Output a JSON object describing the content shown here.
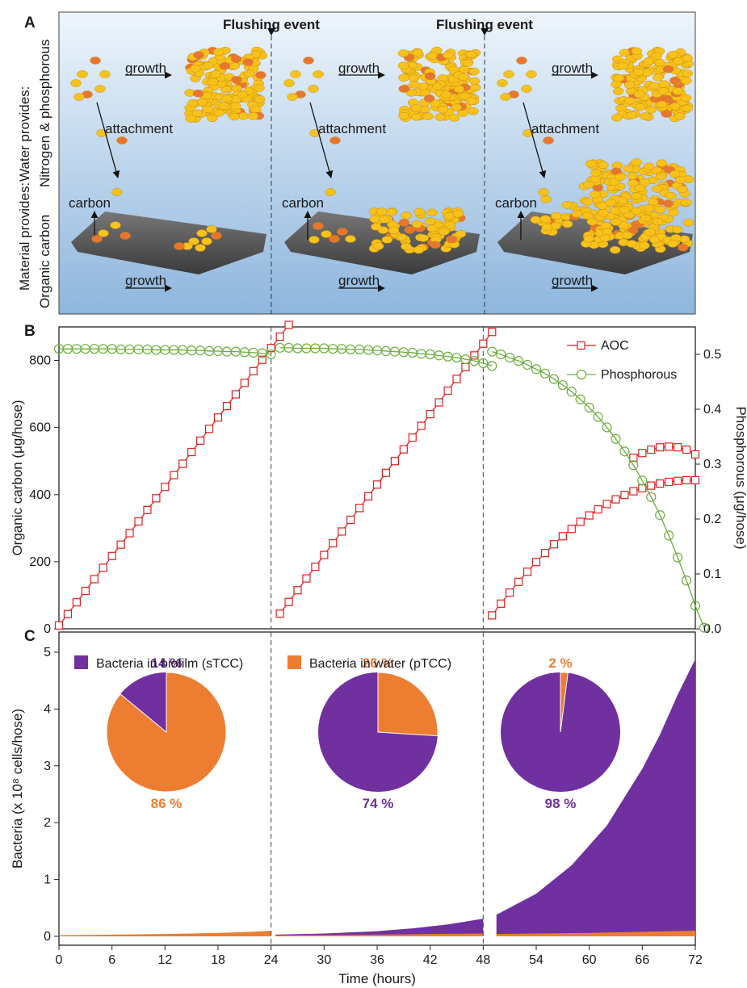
{
  "panel_a": {
    "letter": "A",
    "flushing": [
      "Flushing event",
      "Flushing event"
    ],
    "water_provides": "Water provides:",
    "nitrogen": "Nitrogen & phosphorous",
    "material_provides": "Material provides:",
    "organic_carbon": "Organic carbon",
    "growth": "growth",
    "attachment": "attachment",
    "carbon": "carbon",
    "colors": {
      "cell_yellow": "#f7c21a",
      "cell_orange": "#e8762e",
      "surface": "#5a5a5a",
      "bg_top": "#eef5fc",
      "bg_bottom": "#8eb6dd"
    }
  },
  "chart_data": [
    {
      "panel": "B",
      "type": "line",
      "xlabel": "",
      "ylabel": "Organic carbon (μg/hose)",
      "y2label": "Phosphorous (μg/hose)",
      "xlim": [
        0,
        72
      ],
      "ylim": [
        0,
        900
      ],
      "y2lim": [
        0,
        0.55
      ],
      "yticks": [
        "0",
        "200",
        "400",
        "600",
        "800"
      ],
      "y2ticks": [
        "0.0",
        "0.1",
        "0.2",
        "0.3",
        "0.4",
        "0.5"
      ],
      "flushing_events": [
        24,
        48
      ],
      "legend": "top-right",
      "series": [
        {
          "name": "AOC",
          "axis": "left",
          "color": "#e02020",
          "marker": "square",
          "segments": [
            {
              "x0": 0,
              "dx": 1,
              "values": [
                10,
                44,
                79,
                113,
                148,
                182,
                217,
                251,
                285,
                320,
                354,
                389,
                423,
                458,
                492,
                527,
                561,
                596,
                630,
                664,
                699,
                733,
                768,
                802,
                837,
                871,
                906
              ]
            },
            {
              "x0": 25,
              "dx": 1,
              "values": [
                45,
                80,
                115,
                150,
                185,
                220,
                255,
                290,
                325,
                360,
                395,
                430,
                465,
                500,
                535,
                570,
                605,
                640,
                675,
                710,
                745,
                780,
                815,
                850,
                885
              ]
            },
            {
              "x0": 49,
              "dx": 1,
              "values": [
                40,
                75,
                108,
                140,
                170,
                199,
                226,
                252,
                276,
                298,
                319,
                338,
                356,
                372,
                386,
                399,
                410,
                419,
                427,
                433,
                438,
                441,
                443,
                443
              ]
            },
            {
              "x0": 65,
              "dx": 1,
              "values": [
                510,
                524,
                534,
                541,
                543,
                541,
                534,
                520
              ]
            }
          ]
        },
        {
          "name": "Phosphorous",
          "axis": "right",
          "color": "#6aae3c",
          "marker": "circle",
          "segments": [
            {
              "x0": 0,
              "dx": 1,
              "values": [
                0.51,
                0.51,
                0.51,
                0.51,
                0.51,
                0.51,
                0.51,
                0.509,
                0.509,
                0.509,
                0.509,
                0.508,
                0.508,
                0.508,
                0.508,
                0.507,
                0.507,
                0.506,
                0.506,
                0.505,
                0.505,
                0.504,
                0.503,
                0.502,
                0.5
              ]
            },
            {
              "x0": 25,
              "dx": 1,
              "values": [
                0.512,
                0.512,
                0.511,
                0.511,
                0.511,
                0.511,
                0.51,
                0.51,
                0.509,
                0.509,
                0.508,
                0.507,
                0.506,
                0.505,
                0.504,
                0.503,
                0.501,
                0.5,
                0.498,
                0.496,
                0.494,
                0.491,
                0.488,
                0.484,
                0.479
              ]
            },
            {
              "x0": 49,
              "dx": 1,
              "values": [
                0.505,
                0.5,
                0.494,
                0.488,
                0.481,
                0.473,
                0.465,
                0.455,
                0.444,
                0.432,
                0.418,
                0.403,
                0.386,
                0.367,
                0.346,
                0.323,
                0.298,
                0.27,
                0.24,
                0.207,
                0.17,
                0.13,
                0.088,
                0.042,
                0.002
              ]
            }
          ]
        }
      ]
    },
    {
      "panel": "C",
      "type": "area",
      "xlabel": "Time (hours)",
      "ylabel": "Bacteria (x 10⁸ cells/hose)",
      "xlim": [
        0,
        72
      ],
      "ylim": [
        0,
        5
      ],
      "xticks": [
        "0",
        "6",
        "12",
        "18",
        "24",
        "30",
        "36",
        "42",
        "48",
        "54",
        "60",
        "66",
        "72"
      ],
      "yticks": [
        "0",
        "1",
        "2",
        "3",
        "4",
        "5"
      ],
      "flushing_events": [
        24,
        48
      ],
      "legend": "top-left",
      "series": [
        {
          "name": "Bacteria in biofilm (sTCC)",
          "color": "#7030a0",
          "segments": [
            {
              "x": [
                0,
                6,
                12,
                18,
                24
              ],
              "values": [
                0.01,
                0.015,
                0.02,
                0.03,
                0.05
              ]
            },
            {
              "x": [
                24.5,
                30,
                36,
                40,
                44,
                46,
                48
              ],
              "values": [
                0.03,
                0.05,
                0.09,
                0.14,
                0.21,
                0.26,
                0.31
              ]
            },
            {
              "x": [
                49.5,
                54,
                58,
                62,
                66,
                68,
                70,
                72
              ],
              "values": [
                0.38,
                0.75,
                1.25,
                1.95,
                2.95,
                3.55,
                4.25,
                4.88
              ]
            }
          ]
        },
        {
          "name": "Bacteria in water (pTCC)",
          "color": "#ed7d31",
          "segments": [
            {
              "x": [
                0,
                6,
                12,
                18,
                22,
                24
              ],
              "values": [
                0.02,
                0.03,
                0.04,
                0.06,
                0.08,
                0.1
              ]
            },
            {
              "x": [
                24.5,
                30,
                36,
                42,
                48
              ],
              "values": [
                0.02,
                0.025,
                0.03,
                0.04,
                0.05
              ]
            },
            {
              "x": [
                49.5,
                54,
                60,
                66,
                72
              ],
              "values": [
                0.04,
                0.05,
                0.06,
                0.08,
                0.1
              ]
            }
          ]
        }
      ],
      "pies": [
        {
          "biofilm_pct": 14,
          "water_pct": 86,
          "top_label": "14 %",
          "bottom_label": "86 %",
          "top_color": "#7030a0",
          "bottom_color": "#ed7d31"
        },
        {
          "biofilm_pct": 74,
          "water_pct": 26,
          "top_label": "26 %",
          "bottom_label": "74 %",
          "top_color": "#ed7d31",
          "bottom_color": "#7030a0"
        },
        {
          "biofilm_pct": 98,
          "water_pct": 2,
          "top_label": "2 %",
          "bottom_label": "98 %",
          "top_color": "#ed7d31",
          "bottom_color": "#7030a0"
        }
      ]
    }
  ],
  "labels": {
    "panel_b": "B",
    "panel_c": "C"
  }
}
